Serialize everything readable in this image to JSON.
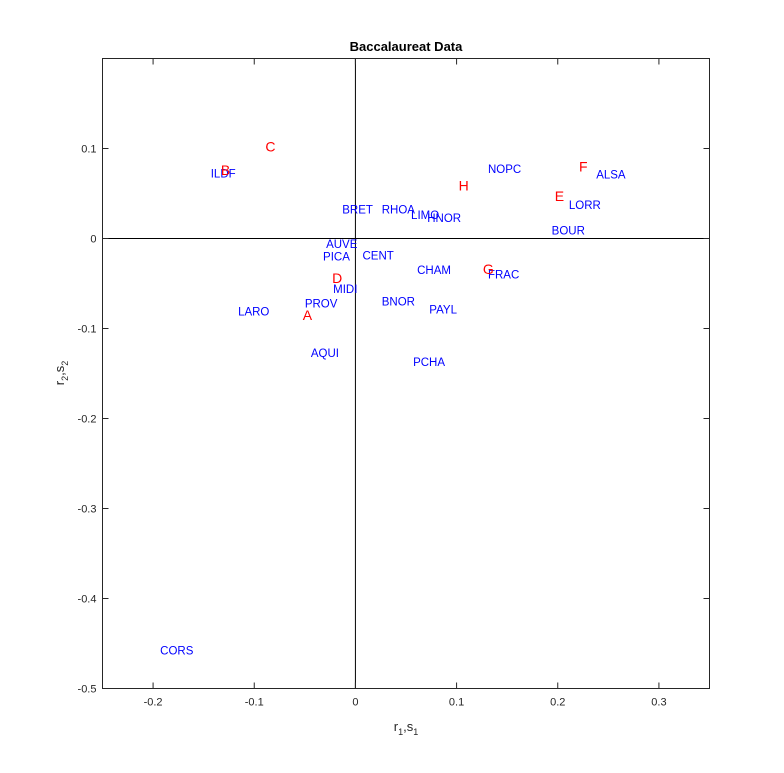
{
  "chart_data": {
    "type": "scatter",
    "title": "Baccalaureat Data",
    "xlabel": {
      "main": "r",
      "sub1": "1",
      "sep": ",s",
      "sub2": "1"
    },
    "ylabel": {
      "main": "r",
      "sub1": "2",
      "sep": ",s",
      "sub2": "2"
    },
    "xlim": [
      -0.25,
      0.35
    ],
    "ylim": [
      -0.5,
      0.2
    ],
    "xticks": [
      -0.2,
      -0.1,
      0,
      0.1,
      0.2,
      0.3
    ],
    "xtick_labels": [
      "-0.2",
      "-0.1",
      "0",
      "0.1",
      "0.2",
      "0.3"
    ],
    "yticks": [
      -0.5,
      -0.4,
      -0.3,
      -0.2,
      -0.1,
      0,
      0.1
    ],
    "ytick_labels": [
      "-0.5",
      "-0.4",
      "-0.3",
      "-0.2",
      "-0.1",
      "0",
      "0.1"
    ],
    "grid": false,
    "series": [
      {
        "color": "#0000ff",
        "points": [
          {
            "label": "ILDF",
            "x": -0.143,
            "y": 0.072
          },
          {
            "label": "NOPC",
            "x": 0.131,
            "y": 0.077
          },
          {
            "label": "ALSA",
            "x": 0.238,
            "y": 0.071
          },
          {
            "label": "LORR",
            "x": 0.211,
            "y": 0.037
          },
          {
            "label": "BRET",
            "x": -0.013,
            "y": 0.032
          },
          {
            "label": "RHOA",
            "x": 0.026,
            "y": 0.032
          },
          {
            "label": "LIMO",
            "x": 0.055,
            "y": 0.026
          },
          {
            "label": "HNOR",
            "x": 0.071,
            "y": 0.023
          },
          {
            "label": "BOUR",
            "x": 0.194,
            "y": 0.009
          },
          {
            "label": "AUVE",
            "x": -0.029,
            "y": -0.006
          },
          {
            "label": "PICA",
            "x": -0.032,
            "y": -0.02
          },
          {
            "label": "CENT",
            "x": 0.007,
            "y": -0.019
          },
          {
            "label": "CHAM",
            "x": 0.061,
            "y": -0.035
          },
          {
            "label": "FRAC",
            "x": 0.131,
            "y": -0.04
          },
          {
            "label": "MIDI",
            "x": -0.022,
            "y": -0.056
          },
          {
            "label": "PROV",
            "x": -0.05,
            "y": -0.072
          },
          {
            "label": "BNOR",
            "x": 0.026,
            "y": -0.07
          },
          {
            "label": "PAYL",
            "x": 0.073,
            "y": -0.079
          },
          {
            "label": "LARO",
            "x": -0.116,
            "y": -0.081
          },
          {
            "label": "AQUI",
            "x": -0.044,
            "y": -0.127
          },
          {
            "label": "PCHA",
            "x": 0.057,
            "y": -0.137
          },
          {
            "label": "CORS",
            "x": -0.193,
            "y": -0.458
          }
        ]
      },
      {
        "color": "#ff0000",
        "points": [
          {
            "label": "A",
            "x": -0.052,
            "y": -0.086
          },
          {
            "label": "B",
            "x": -0.133,
            "y": 0.075
          },
          {
            "label": "C",
            "x": -0.089,
            "y": 0.101
          },
          {
            "label": "D",
            "x": -0.023,
            "y": -0.045
          },
          {
            "label": "E",
            "x": 0.197,
            "y": 0.046
          },
          {
            "label": "F",
            "x": 0.221,
            "y": 0.079
          },
          {
            "label": "G",
            "x": 0.126,
            "y": -0.035
          },
          {
            "label": "H",
            "x": 0.102,
            "y": 0.058
          }
        ]
      }
    ],
    "reference_lines": {
      "x_zero": true,
      "y_zero": true
    }
  }
}
